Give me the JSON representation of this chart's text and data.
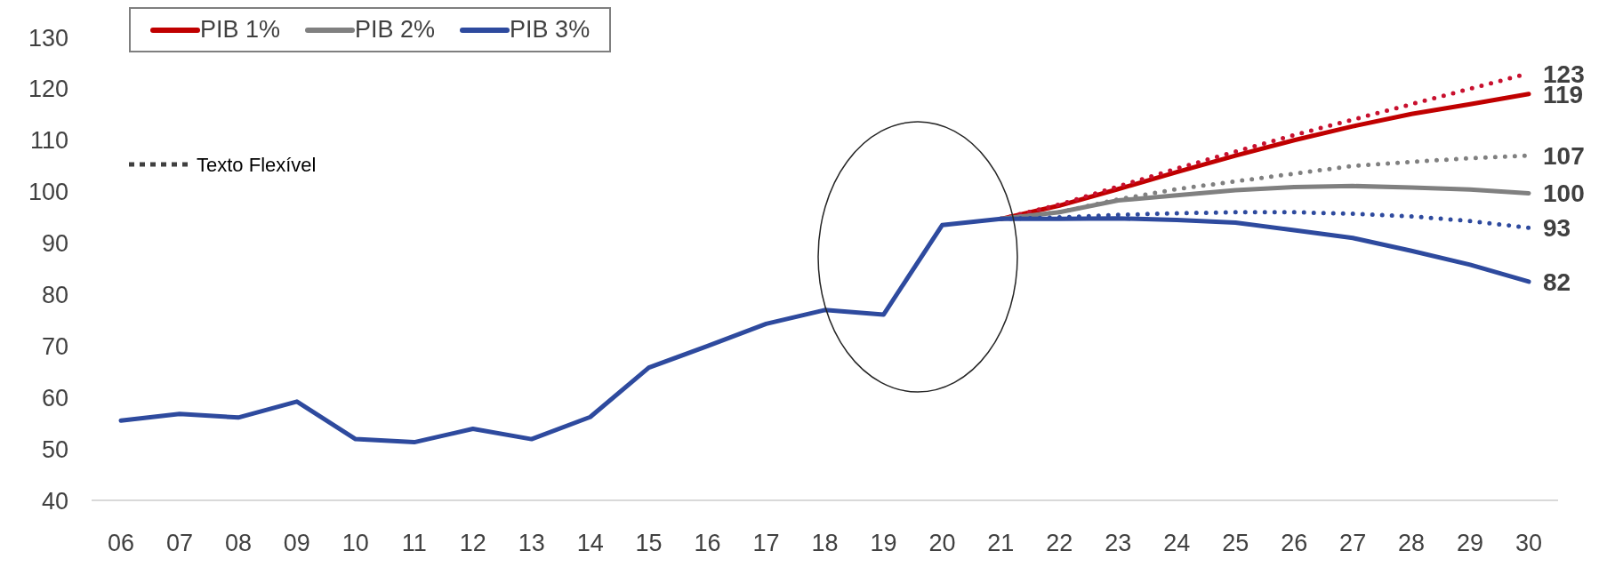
{
  "chart_data": {
    "type": "line",
    "categories": [
      "06",
      "07",
      "08",
      "09",
      "10",
      "11",
      "12",
      "13",
      "14",
      "15",
      "16",
      "17",
      "18",
      "19",
      "20",
      "21",
      "22",
      "23",
      "24",
      "25",
      "26",
      "27",
      "28",
      "29",
      "30"
    ],
    "series": [
      {
        "name": "PIB 1%",
        "color": "#c00000",
        "line_style": "solid",
        "values": [
          null,
          null,
          null,
          null,
          null,
          null,
          null,
          null,
          null,
          null,
          null,
          null,
          null,
          null,
          null,
          94.7,
          97.3,
          100.5,
          103.8,
          107,
          110,
          112.7,
          115.1,
          117,
          119
        ],
        "value_labels": [
          null,
          null,
          null,
          null,
          null,
          null,
          null,
          null,
          null,
          null,
          null,
          null,
          null,
          null,
          null,
          null,
          null,
          null,
          null,
          null,
          null,
          null,
          null,
          null,
          "119"
        ]
      },
      {
        "color": "#c8102e",
        "line_style": "dotted",
        "values": [
          null,
          null,
          null,
          null,
          null,
          null,
          null,
          null,
          null,
          null,
          null,
          null,
          null,
          null,
          null,
          94.7,
          97.5,
          101,
          104.5,
          107.8,
          111,
          114,
          117,
          120,
          123
        ],
        "value_labels": [
          null,
          null,
          null,
          null,
          null,
          null,
          null,
          null,
          null,
          null,
          null,
          null,
          null,
          null,
          null,
          null,
          null,
          null,
          null,
          null,
          null,
          null,
          null,
          null,
          "123"
        ]
      },
      {
        "name": "PIB 2%",
        "color": "#808080",
        "line_style": "solid",
        "values": [
          null,
          null,
          null,
          null,
          null,
          null,
          null,
          null,
          null,
          null,
          null,
          null,
          null,
          null,
          null,
          94.7,
          96,
          98.3,
          99.3,
          100.3,
          100.9,
          101.1,
          100.8,
          100.4,
          99.7
        ],
        "value_labels": [
          null,
          null,
          null,
          null,
          null,
          null,
          null,
          null,
          null,
          null,
          null,
          null,
          null,
          null,
          null,
          null,
          null,
          null,
          null,
          null,
          null,
          null,
          null,
          null,
          "100"
        ]
      },
      {
        "color": "#808080",
        "line_style": "dotted",
        "values": [
          null,
          null,
          null,
          null,
          null,
          null,
          null,
          null,
          null,
          null,
          null,
          null,
          null,
          null,
          null,
          94.7,
          96,
          98.5,
          100.5,
          102,
          103.5,
          105,
          105.8,
          106.5,
          107
        ],
        "value_labels": [
          null,
          null,
          null,
          null,
          null,
          null,
          null,
          null,
          null,
          null,
          null,
          null,
          null,
          null,
          null,
          null,
          null,
          null,
          null,
          null,
          null,
          null,
          null,
          null,
          "107"
        ]
      },
      {
        "color": "#2e4a9e",
        "line_style": "dotted",
        "values": [
          null,
          null,
          null,
          null,
          null,
          null,
          null,
          null,
          null,
          null,
          null,
          null,
          null,
          null,
          null,
          94.7,
          95,
          95.5,
          95.8,
          96,
          96,
          95.7,
          95.2,
          94.3,
          93
        ],
        "value_labels": [
          null,
          null,
          null,
          null,
          null,
          null,
          null,
          null,
          null,
          null,
          null,
          null,
          null,
          null,
          null,
          null,
          null,
          null,
          null,
          null,
          null,
          null,
          null,
          null,
          "93"
        ]
      },
      {
        "name": "PIB 3%",
        "color": "#2e4a9e",
        "line_style": "solid",
        "values": [
          55.5,
          56.8,
          56.1,
          59.2,
          51.9,
          51.3,
          53.9,
          51.9,
          56.2,
          65.8,
          70,
          74.3,
          77,
          76.1,
          93.5,
          94.7,
          94.7,
          94.8,
          94.5,
          94,
          92.5,
          91,
          88.5,
          85.8,
          82.5
        ],
        "value_labels": [
          null,
          null,
          null,
          null,
          null,
          null,
          null,
          null,
          null,
          null,
          null,
          null,
          null,
          null,
          null,
          null,
          null,
          null,
          null,
          null,
          null,
          null,
          null,
          null,
          "82"
        ]
      }
    ],
    "ylim": [
      40,
      130
    ],
    "yticks": [
      40,
      50,
      60,
      70,
      80,
      90,
      100,
      110,
      120,
      130
    ],
    "grid": false,
    "legend": "top left",
    "marker": "none",
    "annotations": [
      "Texto Flexível"
    ]
  }
}
